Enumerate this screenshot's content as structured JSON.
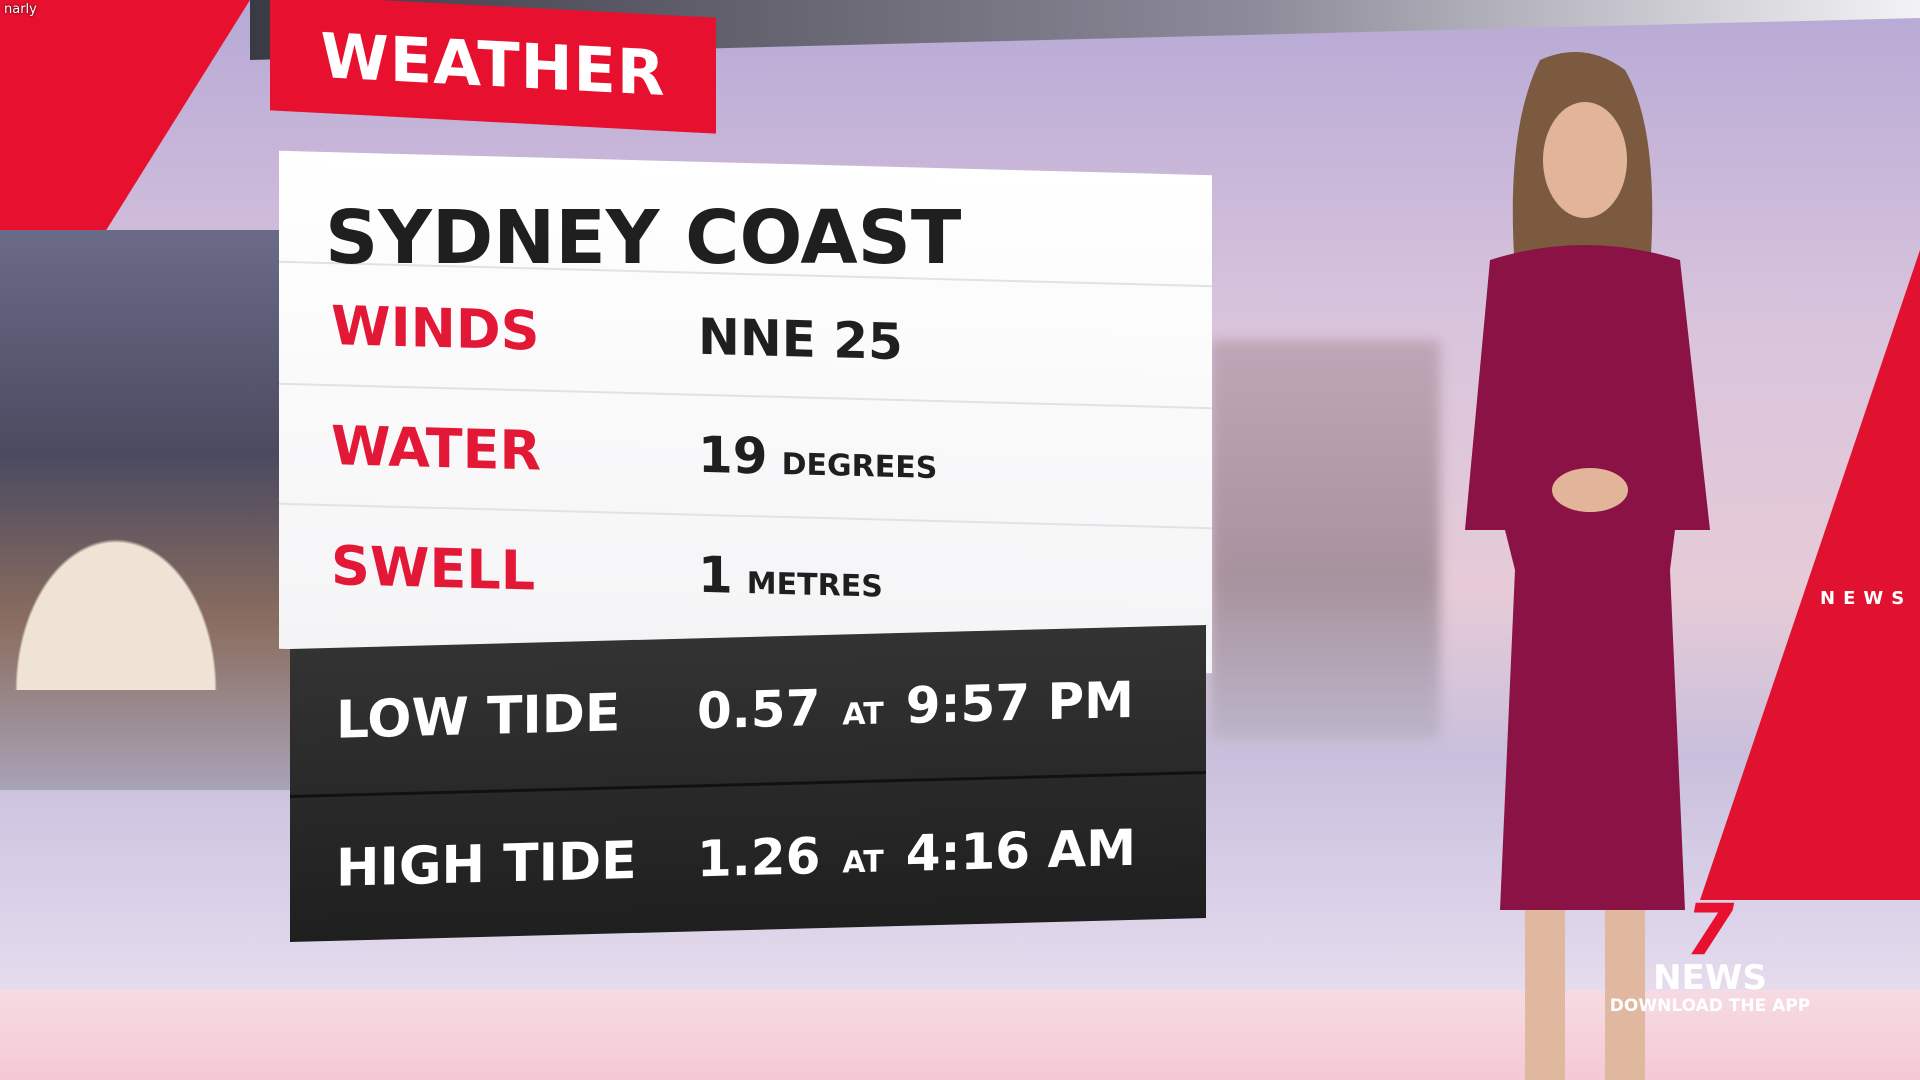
{
  "overlay_tag": "narly",
  "banner": "WEATHER",
  "panel": {
    "title": "SYDNEY COAST",
    "rows": [
      {
        "label": "WINDS",
        "value": "NNE 25",
        "unit": ""
      },
      {
        "label": "WATER",
        "value": "19",
        "unit": "DEGREES"
      },
      {
        "label": "SWELL",
        "value": "1",
        "unit": "METRES"
      }
    ],
    "tides": [
      {
        "label": "LOW TIDE",
        "height": "0.57",
        "at": "AT",
        "time": "9:57 PM"
      },
      {
        "label": "HIGH TIDE",
        "height": "1.26",
        "at": "AT",
        "time": "4:16 AM"
      }
    ]
  },
  "logo": {
    "seven": "7",
    "news": "NEWS",
    "tagline": "DOWNLOAD THE APP"
  },
  "side_text": "NEWS",
  "colors": {
    "accent_red": "#e8102f",
    "label_red": "#e31837",
    "dress": "#8a1244",
    "dark_panel": "#262626"
  }
}
